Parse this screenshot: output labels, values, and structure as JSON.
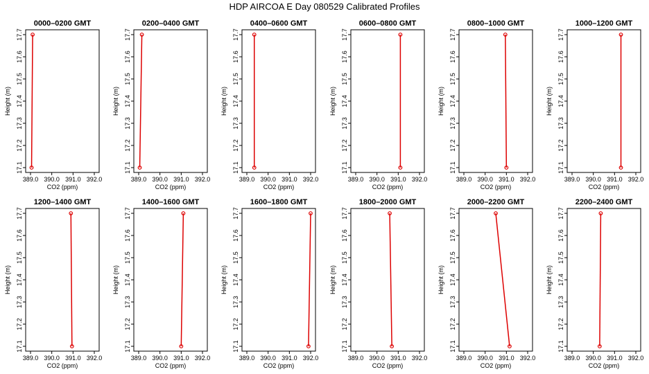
{
  "title": "HDP  AIRCOA E  Day 080529  Calibrated Profiles",
  "chart_data": [
    {
      "type": "line",
      "title": "0000–0200 GMT",
      "xlabel": "CO2 (ppm)",
      "ylabel": "Height (m)",
      "xlim": [
        389.0,
        392.0
      ],
      "ylim": [
        17.1,
        17.7
      ],
      "x": [
        389.05,
        389.1
      ],
      "y": [
        17.1,
        17.7
      ],
      "xticks": [
        "389.0",
        "390.0",
        "391.0",
        "392.0"
      ],
      "yticks": [
        "17.1",
        "17.2",
        "17.3",
        "17.4",
        "17.5",
        "17.6",
        "17.7"
      ]
    },
    {
      "type": "line",
      "title": "0200–0400 GMT",
      "xlabel": "CO2 (ppm)",
      "ylabel": "Height (m)",
      "xlim": [
        389.0,
        392.0
      ],
      "ylim": [
        17.1,
        17.7
      ],
      "x": [
        389.05,
        389.15
      ],
      "y": [
        17.1,
        17.7
      ],
      "xticks": [
        "389.0",
        "390.0",
        "391.0",
        "392.0"
      ],
      "yticks": [
        "17.1",
        "17.2",
        "17.3",
        "17.4",
        "17.5",
        "17.6",
        "17.7"
      ]
    },
    {
      "type": "line",
      "title": "0400–0600 GMT",
      "xlabel": "CO2 (ppm)",
      "ylabel": "Height (m)",
      "xlim": [
        389.0,
        392.0
      ],
      "ylim": [
        17.1,
        17.7
      ],
      "x": [
        389.35,
        389.35
      ],
      "y": [
        17.1,
        17.7
      ],
      "xticks": [
        "389.0",
        "390.0",
        "391.0",
        "392.0"
      ],
      "yticks": [
        "17.1",
        "17.2",
        "17.3",
        "17.4",
        "17.5",
        "17.6",
        "17.7"
      ]
    },
    {
      "type": "line",
      "title": "0600–0800 GMT",
      "xlabel": "CO2 (ppm)",
      "ylabel": "Height (m)",
      "xlim": [
        389.0,
        392.0
      ],
      "ylim": [
        17.1,
        17.7
      ],
      "x": [
        391.1,
        391.1
      ],
      "y": [
        17.1,
        17.7
      ],
      "xticks": [
        "389.0",
        "390.0",
        "391.0",
        "392.0"
      ],
      "yticks": [
        "17.1",
        "17.2",
        "17.3",
        "17.4",
        "17.5",
        "17.6",
        "17.7"
      ]
    },
    {
      "type": "line",
      "title": "0800–1000 GMT",
      "xlabel": "CO2 (ppm)",
      "ylabel": "Height (m)",
      "xlim": [
        389.0,
        392.0
      ],
      "ylim": [
        17.1,
        17.7
      ],
      "x": [
        391.0,
        390.95
      ],
      "y": [
        17.1,
        17.7
      ],
      "xticks": [
        "389.0",
        "390.0",
        "391.0",
        "392.0"
      ],
      "yticks": [
        "17.1",
        "17.2",
        "17.3",
        "17.4",
        "17.5",
        "17.6",
        "17.7"
      ]
    },
    {
      "type": "line",
      "title": "1000–1200 GMT",
      "xlabel": "CO2 (ppm)",
      "ylabel": "Height (m)",
      "xlim": [
        389.0,
        392.0
      ],
      "ylim": [
        17.1,
        17.7
      ],
      "x": [
        391.3,
        391.3
      ],
      "y": [
        17.1,
        17.7
      ],
      "xticks": [
        "389.0",
        "390.0",
        "391.0",
        "392.0"
      ],
      "yticks": [
        "17.1",
        "17.2",
        "17.3",
        "17.4",
        "17.5",
        "17.6",
        "17.7"
      ]
    },
    {
      "type": "line",
      "title": "1200–1400 GMT",
      "xlabel": "CO2 (ppm)",
      "ylabel": "Height (m)",
      "xlim": [
        389.0,
        392.0
      ],
      "ylim": [
        17.1,
        17.7
      ],
      "x": [
        390.95,
        390.9
      ],
      "y": [
        17.1,
        17.7
      ],
      "xticks": [
        "389.0",
        "390.0",
        "391.0",
        "392.0"
      ],
      "yticks": [
        "17.1",
        "17.2",
        "17.3",
        "17.4",
        "17.5",
        "17.6",
        "17.7"
      ]
    },
    {
      "type": "line",
      "title": "1400–1600 GMT",
      "xlabel": "CO2 (ppm)",
      "ylabel": "Height (m)",
      "xlim": [
        389.0,
        392.0
      ],
      "ylim": [
        17.1,
        17.7
      ],
      "x": [
        391.0,
        391.1
      ],
      "y": [
        17.1,
        17.7
      ],
      "xticks": [
        "389.0",
        "390.0",
        "391.0",
        "392.0"
      ],
      "yticks": [
        "17.1",
        "17.2",
        "17.3",
        "17.4",
        "17.5",
        "17.6",
        "17.7"
      ]
    },
    {
      "type": "line",
      "title": "1600–1800 GMT",
      "xlabel": "CO2 (ppm)",
      "ylabel": "Height (m)",
      "xlim": [
        389.0,
        392.0
      ],
      "ylim": [
        17.1,
        17.7
      ],
      "x": [
        391.9,
        392.0
      ],
      "y": [
        17.1,
        17.7
      ],
      "xticks": [
        "389.0",
        "390.0",
        "391.0",
        "392.0"
      ],
      "yticks": [
        "17.1",
        "17.2",
        "17.3",
        "17.4",
        "17.5",
        "17.6",
        "17.7"
      ]
    },
    {
      "type": "line",
      "title": "1800–2000 GMT",
      "xlabel": "CO2 (ppm)",
      "ylabel": "Height (m)",
      "xlim": [
        389.0,
        392.0
      ],
      "ylim": [
        17.1,
        17.7
      ],
      "x": [
        390.7,
        390.6
      ],
      "y": [
        17.1,
        17.7
      ],
      "xticks": [
        "389.0",
        "390.0",
        "391.0",
        "392.0"
      ],
      "yticks": [
        "17.1",
        "17.2",
        "17.3",
        "17.4",
        "17.5",
        "17.6",
        "17.7"
      ]
    },
    {
      "type": "line",
      "title": "2000–2200 GMT",
      "xlabel": "CO2 (ppm)",
      "ylabel": "Height (m)",
      "xlim": [
        389.0,
        392.0
      ],
      "ylim": [
        17.1,
        17.7
      ],
      "x": [
        391.15,
        390.5
      ],
      "y": [
        17.1,
        17.7
      ],
      "xticks": [
        "389.0",
        "390.0",
        "391.0",
        "392.0"
      ],
      "yticks": [
        "17.1",
        "17.2",
        "17.3",
        "17.4",
        "17.5",
        "17.6",
        "17.7"
      ]
    },
    {
      "type": "line",
      "title": "2200–2400 GMT",
      "xlabel": "CO2 (ppm)",
      "ylabel": "Height (m)",
      "xlim": [
        389.0,
        392.0
      ],
      "ylim": [
        17.1,
        17.7
      ],
      "x": [
        390.3,
        390.35
      ],
      "y": [
        17.1,
        17.7
      ],
      "xticks": [
        "389.0",
        "390.0",
        "391.0",
        "392.0"
      ],
      "yticks": [
        "17.1",
        "17.2",
        "17.3",
        "17.4",
        "17.5",
        "17.6",
        "17.7"
      ]
    }
  ],
  "colors": {
    "series": "#dd0000",
    "axis": "#000000",
    "background": "#ffffff"
  }
}
